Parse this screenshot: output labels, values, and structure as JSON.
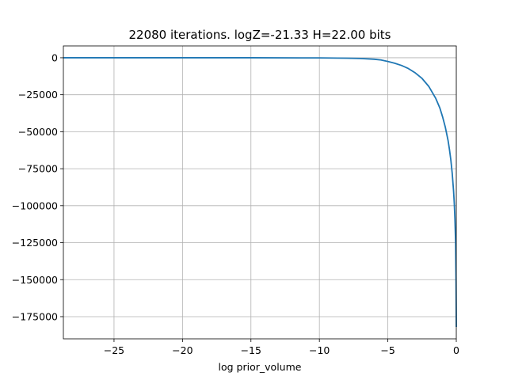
{
  "chart_data": {
    "type": "line",
    "title": "22080 iterations. logZ=-21.33 H=22.00 bits",
    "xlabel": "log prior_volume",
    "ylabel": "",
    "xlim": [
      -28.7,
      0
    ],
    "ylim": [
      -190000,
      8000
    ],
    "grid": true,
    "x_ticks": [
      -25,
      -20,
      -15,
      -10,
      -5,
      0
    ],
    "x_tick_labels": [
      "−25",
      "−20",
      "−15",
      "−10",
      "−5",
      "0"
    ],
    "y_ticks": [
      0,
      -25000,
      -50000,
      -75000,
      -100000,
      -125000,
      -150000,
      -175000
    ],
    "y_tick_labels": [
      "0",
      "−25000",
      "−50000",
      "−75000",
      "−100000",
      "−125000",
      "−150000",
      "−175000"
    ],
    "series": [
      {
        "color": "#1f77b4",
        "x": [
          -28.7,
          -25,
          -20,
          -15,
          -10,
          -8,
          -7,
          -6,
          -5.5,
          -5,
          -4.5,
          -4,
          -3.5,
          -3,
          -2.5,
          -2,
          -1.5,
          -1.2,
          -1,
          -0.8,
          -0.6,
          -0.5,
          -0.4,
          -0.3,
          -0.2,
          -0.15,
          -0.1,
          -0.05,
          -0.02,
          0
        ],
        "y": [
          0,
          0,
          0,
          0,
          -100,
          -300,
          -500,
          -1000,
          -1500,
          -2500,
          -3700,
          -5200,
          -7300,
          -10200,
          -14000,
          -19500,
          -27500,
          -34000,
          -40000,
          -47000,
          -56000,
          -62000,
          -69000,
          -78000,
          -90000,
          -98000,
          -109000,
          -125000,
          -150000,
          -182000
        ]
      }
    ]
  }
}
